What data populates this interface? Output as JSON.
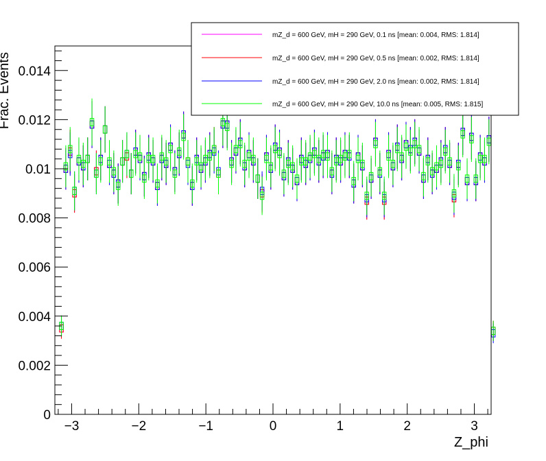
{
  "chart_data": {
    "type": "histogram",
    "xlabel": "Z_phi",
    "ylabel": "Frac. Events",
    "xlim": [
      -3.25,
      3.25
    ],
    "ylim": [
      0,
      0.015
    ],
    "x_ticks": [
      -3,
      -2,
      -1,
      0,
      1,
      2,
      3
    ],
    "x_tick_labels": [
      "−3",
      "−2",
      "−1",
      "0",
      "1",
      "2",
      "3"
    ],
    "y_ticks": [
      0,
      0.002,
      0.004,
      0.006,
      0.008,
      0.01,
      0.012,
      0.014
    ],
    "y_tick_labels": [
      "0",
      "0.002",
      "0.004",
      "0.006",
      "0.008",
      "0.01",
      "0.012",
      "0.014"
    ],
    "bins": 100,
    "legend_position": "top-right",
    "series": [
      {
        "name": "mZ_d = 600 GeV, mH = 290 GeV, 0.1 ns [mean: 0.004, RMS: 1.814]",
        "color": "#ff00ff",
        "values": [
          0.0,
          0.0035,
          0.01,
          0.0107,
          0.009,
          0.0103,
          0.0101,
          0.0104,
          0.0118,
          0.0099,
          0.0104,
          0.0116,
          0.0102,
          0.0098,
          0.0094,
          0.0103,
          0.0105,
          0.0098,
          0.0107,
          0.0104,
          0.0097,
          0.0105,
          0.0103,
          0.0093,
          0.0104,
          0.0102,
          0.0109,
          0.0099,
          0.0106,
          0.0114,
          0.0103,
          0.0093,
          0.0104,
          0.01,
          0.0103,
          0.0106,
          0.0108,
          0.0098,
          0.0118,
          0.0118,
          0.0103,
          0.0107,
          0.0111,
          0.0101,
          0.0106,
          0.0103,
          0.0096,
          0.009,
          0.0105,
          0.01,
          0.0109,
          0.0107,
          0.0097,
          0.0103,
          0.01,
          0.0095,
          0.0104,
          0.0102,
          0.0104,
          0.0107,
          0.0103,
          0.0105,
          0.0106,
          0.0098,
          0.0104,
          0.0103,
          0.0106,
          0.0105,
          0.0094,
          0.0105,
          0.0101,
          0.0087,
          0.0096,
          0.0111,
          0.0098,
          0.0087,
          0.0106,
          0.0101,
          0.0109,
          0.0104,
          0.011,
          0.0108,
          0.0111,
          0.0107,
          0.0096,
          0.0104,
          0.0098,
          0.01,
          0.0103,
          0.0108,
          0.0102,
          0.0088,
          0.0102,
          0.0115,
          0.0095,
          0.0113,
          0.0095,
          0.0105,
          0.0103,
          0.0112,
          0.0034
        ],
        "error_bars": true
      },
      {
        "name": "mZ_d = 600 GeV, mH = 290 GeV, 0.5 ns [mean: 0.002, RMS: 1.814]",
        "color": "#ff0000",
        "values": [
          0.0,
          0.0035,
          0.01,
          0.0107,
          0.009,
          0.0103,
          0.0101,
          0.0104,
          0.0118,
          0.0099,
          0.0104,
          0.0116,
          0.0102,
          0.0098,
          0.0094,
          0.0103,
          0.0105,
          0.0098,
          0.0107,
          0.0104,
          0.0097,
          0.0105,
          0.0103,
          0.0093,
          0.0104,
          0.0102,
          0.0109,
          0.0099,
          0.0106,
          0.0114,
          0.0103,
          0.0093,
          0.0104,
          0.01,
          0.0103,
          0.0106,
          0.0108,
          0.0098,
          0.0118,
          0.0118,
          0.0103,
          0.0107,
          0.0111,
          0.0101,
          0.0106,
          0.0103,
          0.0096,
          0.009,
          0.0105,
          0.01,
          0.0109,
          0.0107,
          0.0097,
          0.0103,
          0.01,
          0.0095,
          0.0104,
          0.0102,
          0.0104,
          0.0107,
          0.0103,
          0.0105,
          0.0106,
          0.0098,
          0.0104,
          0.0103,
          0.0106,
          0.0105,
          0.0094,
          0.0105,
          0.0101,
          0.0087,
          0.0096,
          0.0111,
          0.0098,
          0.0087,
          0.0106,
          0.0101,
          0.0109,
          0.0104,
          0.011,
          0.0108,
          0.0111,
          0.0107,
          0.0096,
          0.0104,
          0.0098,
          0.01,
          0.0103,
          0.0108,
          0.0102,
          0.0088,
          0.0102,
          0.0115,
          0.0095,
          0.0113,
          0.0095,
          0.0105,
          0.0103,
          0.0112,
          0.0034
        ],
        "error_bars": true
      },
      {
        "name": "mZ_d = 600 GeV, mH = 290 GeV, 2.0 ns [mean: 0.002, RMS: 1.814]",
        "color": "#0000ff",
        "values": [
          0.0,
          0.0036,
          0.01,
          0.0106,
          0.0091,
          0.0103,
          0.0101,
          0.0104,
          0.0118,
          0.0098,
          0.0104,
          0.0116,
          0.0102,
          0.0098,
          0.0094,
          0.0103,
          0.0106,
          0.0098,
          0.0107,
          0.0104,
          0.0097,
          0.0105,
          0.0103,
          0.0093,
          0.0104,
          0.0102,
          0.0109,
          0.0099,
          0.0106,
          0.0114,
          0.0102,
          0.0093,
          0.0104,
          0.01,
          0.0103,
          0.0106,
          0.0107,
          0.0099,
          0.0118,
          0.0118,
          0.0103,
          0.0107,
          0.0111,
          0.0101,
          0.0106,
          0.0103,
          0.0096,
          0.0091,
          0.0105,
          0.01,
          0.0109,
          0.0107,
          0.0097,
          0.0103,
          0.01,
          0.0095,
          0.0104,
          0.0102,
          0.0104,
          0.0107,
          0.0103,
          0.0105,
          0.0106,
          0.0098,
          0.0104,
          0.0103,
          0.0106,
          0.0105,
          0.0094,
          0.0105,
          0.0101,
          0.0088,
          0.0096,
          0.0111,
          0.0098,
          0.0088,
          0.0106,
          0.0101,
          0.0109,
          0.0104,
          0.011,
          0.0108,
          0.0111,
          0.0107,
          0.0096,
          0.0104,
          0.0098,
          0.01,
          0.0103,
          0.0108,
          0.0102,
          0.0089,
          0.0102,
          0.0115,
          0.0095,
          0.0113,
          0.0095,
          0.0105,
          0.0103,
          0.0112,
          0.0033
        ],
        "error_bars": true
      },
      {
        "name": "mZ_d = 600 GeV, mH = 290 GeV, 10.0 ns [mean: 0.005, RMS: 1.815]",
        "color": "#00ff00",
        "values": [
          0.0,
          0.0036,
          0.0101,
          0.0108,
          0.0091,
          0.0104,
          0.0102,
          0.0104,
          0.0119,
          0.0098,
          0.0103,
          0.0116,
          0.0103,
          0.0099,
          0.0093,
          0.0103,
          0.0106,
          0.0098,
          0.0106,
          0.0105,
          0.0096,
          0.0104,
          0.0104,
          0.0094,
          0.0105,
          0.0103,
          0.0108,
          0.0098,
          0.0107,
          0.0113,
          0.0103,
          0.0094,
          0.0103,
          0.0101,
          0.0104,
          0.0105,
          0.0108,
          0.0098,
          0.0119,
          0.0117,
          0.0102,
          0.0108,
          0.011,
          0.0102,
          0.0105,
          0.0104,
          0.0096,
          0.0089,
          0.0104,
          0.0101,
          0.0108,
          0.0106,
          0.0098,
          0.0102,
          0.0101,
          0.0096,
          0.0103,
          0.0103,
          0.0105,
          0.0106,
          0.0104,
          0.0106,
          0.0105,
          0.0099,
          0.0103,
          0.0104,
          0.0105,
          0.0106,
          0.0095,
          0.0104,
          0.0102,
          0.0089,
          0.0097,
          0.011,
          0.0099,
          0.0089,
          0.0105,
          0.0102,
          0.0108,
          0.0105,
          0.0109,
          0.0107,
          0.011,
          0.0108,
          0.0097,
          0.0103,
          0.0099,
          0.0101,
          0.0102,
          0.0107,
          0.0103,
          0.009,
          0.0101,
          0.0114,
          0.0096,
          0.0112,
          0.0096,
          0.0104,
          0.0104,
          0.0111,
          0.0034
        ],
        "error_bars": true
      }
    ]
  }
}
